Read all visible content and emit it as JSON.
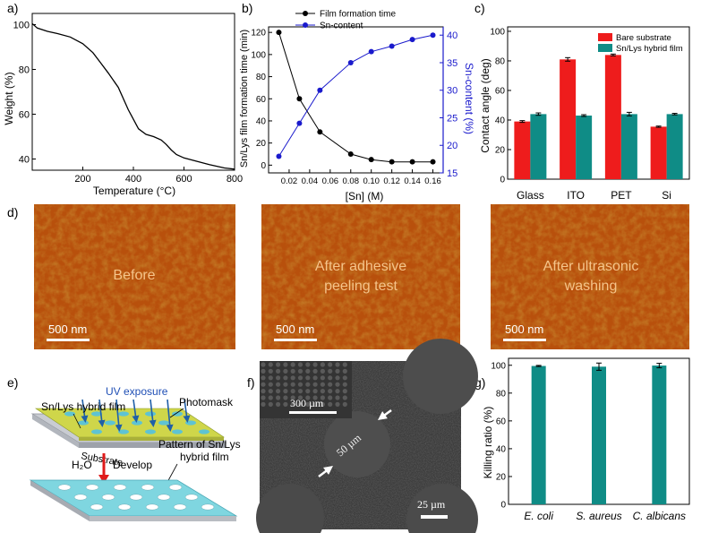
{
  "panel_labels": [
    "a)",
    "b)",
    "c)",
    "d)",
    "e)",
    "f)",
    "g)"
  ],
  "colors": {
    "black": "#000000",
    "blue": "#1a1acc",
    "red": "#ee1c1c",
    "teal": "#0f8c86",
    "afm": "#c45a12",
    "sem_bg": "#3e3e3e",
    "pad": "#cfd64a",
    "film": "#7fd6e0"
  },
  "chart_data": [
    {
      "panel": "a",
      "type": "line",
      "xlabel": "Temperature (°C)",
      "ylabel": "Weight (%)",
      "xlim": [
        0,
        800
      ],
      "ylim": [
        35,
        105
      ],
      "xticks": [
        200,
        400,
        600,
        800
      ],
      "yticks": [
        40,
        60,
        80,
        100
      ],
      "series": [
        {
          "x": [
            0,
            20,
            60,
            100,
            150,
            200,
            240,
            270,
            300,
            340,
            380,
            420,
            450,
            480,
            510,
            530,
            550,
            570,
            600,
            650,
            700,
            760,
            800
          ],
          "values": [
            100.5,
            98.5,
            97,
            96,
            94.5,
            91.5,
            87.5,
            83,
            78.5,
            72,
            62,
            53.5,
            51,
            50,
            48.5,
            46.5,
            44,
            42,
            40.5,
            39,
            37.5,
            36,
            35.5
          ]
        }
      ]
    },
    {
      "panel": "b",
      "type": "line",
      "xlabel": "[Sn] (M)",
      "ylabel": "Sn/Lys film formation time (min)",
      "y2label": "Sn-content (%)",
      "xlim": [
        0,
        0.17
      ],
      "ylim": [
        -7,
        125
      ],
      "y2lim": [
        15,
        41.5
      ],
      "xticks": [
        0.02,
        0.04,
        0.06,
        0.08,
        0.1,
        0.12,
        0.14,
        0.16
      ],
      "xtick_labels": [
        "0.02",
        "0.04",
        "0.06",
        "0.08",
        "0.10",
        "0.12",
        "0.14",
        "0.16"
      ],
      "yticks": [
        0,
        20,
        40,
        60,
        80,
        100,
        120
      ],
      "y2ticks": [
        15,
        20,
        25,
        30,
        35,
        40
      ],
      "legend": "top-right",
      "series": [
        {
          "name": "Film formation time",
          "axis": "left",
          "color": "#000000",
          "x": [
            0.01,
            0.03,
            0.05,
            0.08,
            0.1,
            0.12,
            0.14,
            0.16
          ],
          "values": [
            120,
            60,
            30,
            10,
            5,
            3,
            3,
            3
          ]
        },
        {
          "name": "Sn-content",
          "axis": "right",
          "color": "#1a1acc",
          "x": [
            0.01,
            0.03,
            0.05,
            0.08,
            0.1,
            0.12,
            0.14,
            0.16
          ],
          "values": [
            18,
            24,
            30,
            35,
            37,
            38,
            39.2,
            40
          ]
        }
      ]
    },
    {
      "panel": "c",
      "type": "bar",
      "ylabel": "Contact angle (deg)",
      "categories": [
        "Glass",
        "ITO",
        "PET",
        "Si"
      ],
      "ylim": [
        0,
        103
      ],
      "yticks": [
        0,
        20,
        40,
        60,
        80,
        100
      ],
      "legend": "top-right",
      "series": [
        {
          "name": "Bare substrate",
          "color": "#ee1c1c",
          "values": [
            39,
            81,
            84,
            35.5
          ],
          "errors": [
            0.6,
            1.2,
            0.6,
            0.4
          ]
        },
        {
          "name": "Sn/Lys hybrid film",
          "color": "#0f8c86",
          "values": [
            44,
            43,
            44,
            44
          ],
          "errors": [
            0.8,
            0.6,
            1.2,
            0.5
          ]
        }
      ]
    },
    {
      "panel": "g",
      "type": "bar",
      "ylabel": "Killing ratio (%)",
      "categories": [
        "E. coli",
        "S. aureus",
        "C. albicans"
      ],
      "ylim": [
        0,
        105
      ],
      "yticks": [
        0,
        20,
        40,
        60,
        80,
        100
      ],
      "series": [
        {
          "color": "#0f8c86",
          "values": [
            99.5,
            99,
            99.8
          ],
          "errors": [
            0.4,
            2.6,
            1.6
          ]
        }
      ]
    }
  ],
  "afm_images": [
    {
      "label": "Before",
      "scale_bar": "500 nm"
    },
    {
      "label": "After adhesive peeling test",
      "label_lines": [
        "After adhesive",
        "peeling test"
      ],
      "scale_bar": "500 nm"
    },
    {
      "label": "After ultrasonic washing",
      "label_lines": [
        "After ultrasonic",
        "washing"
      ],
      "scale_bar": "500 nm"
    }
  ],
  "schematic": {
    "uv_exposure": "UV exposure",
    "photomask": "Photomask",
    "hybrid_film": "Sn/Lys hybrid film",
    "substrate": "Substrate",
    "develop": "Develop",
    "water": "H₂O",
    "pattern_label_lines": [
      "Pattern of Sn/Lys",
      "hybrid film"
    ]
  },
  "sem": {
    "inset_scale": "300 µm",
    "diameter_label": "50 µm",
    "scale_bar": "25 µm"
  }
}
